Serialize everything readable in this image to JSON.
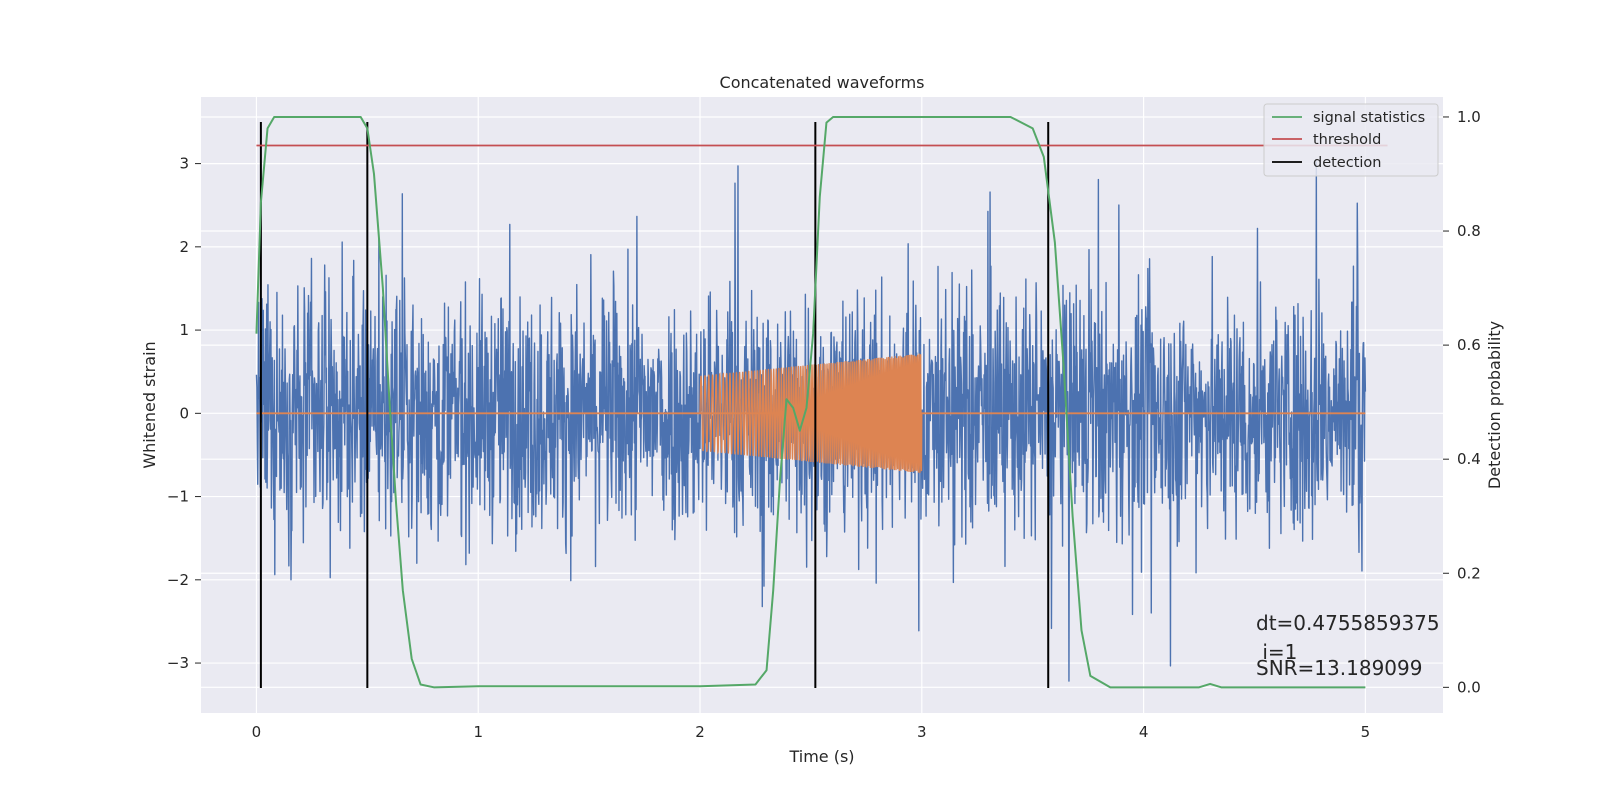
{
  "chart_data": {
    "type": "line",
    "title": "Concatenated waveforms",
    "xlabel": "Time (s)",
    "ylabel": "Whitened strain",
    "ylabel_right": "Detection probability",
    "xlim": [
      -0.25,
      5.35
    ],
    "ylim": [
      -3.6,
      3.8
    ],
    "ylim_right": [
      -0.045,
      1.035
    ],
    "xticks": [
      0,
      1,
      2,
      3,
      4,
      5
    ],
    "yticks": [
      -3,
      -2,
      -1,
      0,
      1,
      2,
      3
    ],
    "yticks_right": [
      0.0,
      0.2,
      0.4,
      0.6,
      0.8,
      1.0
    ],
    "grid": true,
    "legend_position": "top-right",
    "colors": {
      "noise": "#4c72b0",
      "injection": "#dd8452",
      "signal_statistics": "#55a868",
      "threshold": "#c44e52",
      "detection": "#000000",
      "axes_bg": "#eaeaf2",
      "grid": "#ffffff"
    },
    "series": [
      {
        "name": "signal statistics",
        "axis": "right",
        "x": [
          0.0,
          0.02,
          0.05,
          0.08,
          0.15,
          0.3,
          0.47,
          0.5,
          0.53,
          0.57,
          0.6,
          0.63,
          0.66,
          0.7,
          0.74,
          0.8,
          1.0,
          2.0,
          2.25,
          2.3,
          2.33,
          2.36,
          2.39,
          2.42,
          2.45,
          2.48,
          2.51,
          2.54,
          2.57,
          2.6,
          2.65,
          3.0,
          3.4,
          3.5,
          3.55,
          3.6,
          3.64,
          3.68,
          3.72,
          3.76,
          3.85,
          4.25,
          4.3,
          4.35,
          5.0
        ],
        "y": [
          0.62,
          0.85,
          0.98,
          1.0,
          1.0,
          1.0,
          1.0,
          0.98,
          0.9,
          0.7,
          0.5,
          0.32,
          0.17,
          0.05,
          0.005,
          0.0,
          0.002,
          0.002,
          0.005,
          0.03,
          0.17,
          0.36,
          0.505,
          0.49,
          0.45,
          0.49,
          0.62,
          0.86,
          0.99,
          1.0,
          1.0,
          1.0,
          1.0,
          0.98,
          0.93,
          0.78,
          0.56,
          0.3,
          0.1,
          0.02,
          0.0,
          0.0,
          0.006,
          0.0,
          0.0
        ]
      },
      {
        "name": "threshold",
        "axis": "right",
        "x": [
          0.0,
          5.1
        ],
        "y": [
          0.95,
          0.95
        ]
      },
      {
        "name": "detection",
        "axis": "left",
        "x": [
          0.02,
          0.5,
          2.52,
          3.57
        ],
        "ymin": -3.3,
        "ymax": 3.5
      },
      {
        "name": "",
        "axis": "left",
        "kind": "whitened-noise",
        "x_range": [
          0.0,
          5.0
        ],
        "y_envelope": [
          -3.3,
          3.5
        ]
      },
      {
        "name": "",
        "axis": "left",
        "kind": "injected-chirp",
        "x_range": [
          2.0,
          3.0
        ],
        "amplitude_start": 0.45,
        "amplitude_end": 0.72
      }
    ],
    "annotation": {
      "lines": [
        "dt=0.4755859375",
        " i=1",
        "SNR=13.189099"
      ],
      "x": 4.5
    }
  }
}
